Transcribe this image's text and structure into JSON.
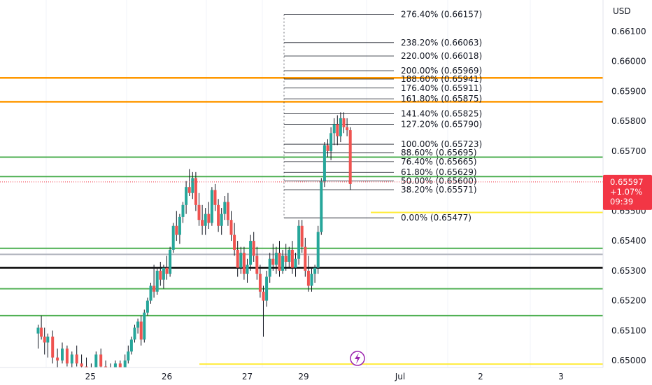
{
  "chart_data": {
    "type": "candlestick",
    "currency": "USD",
    "y_range": [
      0.6497,
      0.6616
    ],
    "y_ticks": [
      "0.66100",
      "0.66000",
      "0.65900",
      "0.65800",
      "0.65700",
      "0.65600",
      "0.65500",
      "0.65400",
      "0.65300",
      "0.65200",
      "0.65100",
      "0.65000"
    ],
    "x_labels": [
      {
        "label": "25",
        "t": 0.55
      },
      {
        "label": "26",
        "t": 1.5
      },
      {
        "label": "27",
        "t": 2.5
      },
      {
        "label": "29",
        "t": 3.2
      },
      {
        "label": "Jul",
        "t": 4.4
      },
      {
        "label": "2",
        "t": 5.4
      },
      {
        "label": "3",
        "t": 6.4
      }
    ],
    "current_price": {
      "value": 0.65597,
      "price_label": "0.65597",
      "change_label": "+1.07%",
      "countdown_label": "09:39",
      "color": "#f23645"
    },
    "fib_levels": [
      {
        "label": "276.40% (0.66157)",
        "price": 0.66157
      },
      {
        "label": "238.20% (0.66063)",
        "price": 0.66063
      },
      {
        "label": "220.00% (0.66018)",
        "price": 0.66018
      },
      {
        "label": "200.00% (0.65969)",
        "price": 0.65969
      },
      {
        "label": "188.60% (0.65941)",
        "price": 0.65941
      },
      {
        "label": "176.40% (0.65911)",
        "price": 0.65911
      },
      {
        "label": "161.80% (0.65875)",
        "price": 0.65875
      },
      {
        "label": "141.40% (0.65825)",
        "price": 0.65825
      },
      {
        "label": "127.20% (0.65790)",
        "price": 0.6579
      },
      {
        "label": "100.00% (0.65723)",
        "price": 0.65723
      },
      {
        "label": "88.60% (0.65695)",
        "price": 0.65695
      },
      {
        "label": "76.40% (0.65665)",
        "price": 0.65665
      },
      {
        "label": "61.80% (0.65629)",
        "price": 0.65629
      },
      {
        "label": "50.00% (0.65600)",
        "price": 0.656
      },
      {
        "label": "38.20% (0.65571)",
        "price": 0.65571
      },
      {
        "label": "0.00% (0.65477)",
        "price": 0.65477
      }
    ],
    "horizontal_levels": [
      {
        "price": 0.65945,
        "color": "#ff9800",
        "style": "solid"
      },
      {
        "price": 0.65865,
        "color": "#ff9800",
        "style": "solid"
      },
      {
        "price": 0.6568,
        "color": "#4caf50",
        "style": "solid"
      },
      {
        "price": 0.65615,
        "color": "#4caf50",
        "style": "solid"
      },
      {
        "price": 0.65375,
        "color": "#4caf50",
        "style": "solid"
      },
      {
        "price": 0.65355,
        "color": "#b2b5be",
        "style": "solid"
      },
      {
        "price": 0.6531,
        "color": "#000000",
        "style": "solid"
      },
      {
        "price": 0.6524,
        "color": "#4caf50",
        "style": "solid"
      },
      {
        "price": 0.6515,
        "color": "#4caf50",
        "style": "solid"
      },
      {
        "price": 0.65495,
        "color": "#ffeb3b",
        "style": "partial"
      },
      {
        "price": 0.64988,
        "color": "#ffeb3b",
        "style": "partial"
      }
    ],
    "candles": [
      [
        -0.1,
        0.6509,
        0.6512,
        0.6504,
        0.6511
      ],
      [
        -0.06,
        0.6511,
        0.6515,
        0.6507,
        0.6508
      ],
      [
        -0.02,
        0.6508,
        0.6511,
        0.6502,
        0.6506
      ],
      [
        0.02,
        0.6506,
        0.6509,
        0.6501,
        0.6508
      ],
      [
        0.08,
        0.6508,
        0.651,
        0.6499,
        0.6501
      ],
      [
        0.14,
        0.6501,
        0.6504,
        0.6497,
        0.65
      ],
      [
        0.2,
        0.65,
        0.6506,
        0.6499,
        0.6504
      ],
      [
        0.26,
        0.6504,
        0.6505,
        0.6498,
        0.6499
      ],
      [
        0.32,
        0.6499,
        0.6503,
        0.6496,
        0.6502
      ],
      [
        0.38,
        0.6502,
        0.6505,
        0.6498,
        0.6499
      ],
      [
        0.44,
        0.6499,
        0.6502,
        0.6495,
        0.6498
      ],
      [
        0.5,
        0.6498,
        0.6501,
        0.6494,
        0.6496
      ],
      [
        0.56,
        0.6496,
        0.6499,
        0.6493,
        0.6497
      ],
      [
        0.62,
        0.6497,
        0.6503,
        0.6496,
        0.6502
      ],
      [
        0.68,
        0.6502,
        0.6504,
        0.6497,
        0.6498
      ],
      [
        0.74,
        0.6498,
        0.65,
        0.6494,
        0.6496
      ],
      [
        0.8,
        0.6496,
        0.6499,
        0.6492,
        0.6497
      ],
      [
        0.86,
        0.6497,
        0.65,
        0.6495,
        0.6499
      ],
      [
        0.92,
        0.6499,
        0.65,
        0.6494,
        0.6495
      ],
      [
        0.98,
        0.6495,
        0.6502,
        0.6495,
        0.65
      ],
      [
        1.02,
        0.65,
        0.6505,
        0.6499,
        0.6503
      ],
      [
        1.06,
        0.6503,
        0.6508,
        0.6502,
        0.6507
      ],
      [
        1.1,
        0.6507,
        0.6512,
        0.6506,
        0.6511
      ],
      [
        1.14,
        0.6511,
        0.6514,
        0.6509,
        0.6513
      ],
      [
        1.18,
        0.6513,
        0.6515,
        0.6505,
        0.6507
      ],
      [
        1.22,
        0.6507,
        0.6517,
        0.6506,
        0.6516
      ],
      [
        1.26,
        0.6516,
        0.6521,
        0.6515,
        0.652
      ],
      [
        1.3,
        0.652,
        0.6526,
        0.6519,
        0.6525
      ],
      [
        1.34,
        0.6525,
        0.6532,
        0.6521,
        0.6523
      ],
      [
        1.38,
        0.6523,
        0.6531,
        0.6522,
        0.653
      ],
      [
        1.42,
        0.653,
        0.6533,
        0.6525,
        0.6527
      ],
      [
        1.46,
        0.6527,
        0.6532,
        0.6524,
        0.6531
      ],
      [
        1.5,
        0.6531,
        0.6535,
        0.6527,
        0.6529
      ],
      [
        1.54,
        0.6529,
        0.6538,
        0.6528,
        0.6537
      ],
      [
        1.58,
        0.6537,
        0.6546,
        0.6536,
        0.6545
      ],
      [
        1.62,
        0.6545,
        0.655,
        0.654,
        0.6542
      ],
      [
        1.66,
        0.6542,
        0.6549,
        0.6539,
        0.6548
      ],
      [
        1.7,
        0.6548,
        0.6553,
        0.6546,
        0.6552
      ],
      [
        1.74,
        0.6552,
        0.656,
        0.6549,
        0.6558
      ],
      [
        1.78,
        0.6558,
        0.6564,
        0.6555,
        0.6556
      ],
      [
        1.82,
        0.6556,
        0.6563,
        0.6554,
        0.6561
      ],
      [
        1.86,
        0.6561,
        0.6563,
        0.655,
        0.6552
      ],
      [
        1.9,
        0.6552,
        0.6556,
        0.6545,
        0.6547
      ],
      [
        1.94,
        0.6547,
        0.6552,
        0.6542,
        0.6545
      ],
      [
        1.98,
        0.6545,
        0.6551,
        0.6542,
        0.6549
      ],
      [
        2.02,
        0.6549,
        0.6553,
        0.6544,
        0.6546
      ],
      [
        2.06,
        0.6546,
        0.6558,
        0.6545,
        0.6557
      ],
      [
        2.1,
        0.6557,
        0.6559,
        0.655,
        0.6552
      ],
      [
        2.14,
        0.6552,
        0.6554,
        0.6543,
        0.6545
      ],
      [
        2.18,
        0.6545,
        0.6551,
        0.6542,
        0.6549
      ],
      [
        2.22,
        0.6549,
        0.6555,
        0.6547,
        0.6553
      ],
      [
        2.26,
        0.6553,
        0.6556,
        0.6545,
        0.6547
      ],
      [
        2.3,
        0.6547,
        0.655,
        0.654,
        0.6542
      ],
      [
        2.34,
        0.6542,
        0.6546,
        0.6535,
        0.6537
      ],
      [
        2.38,
        0.6537,
        0.654,
        0.6528,
        0.6531
      ],
      [
        2.42,
        0.6531,
        0.6538,
        0.6529,
        0.6536
      ],
      [
        2.46,
        0.6536,
        0.6538,
        0.6527,
        0.6529
      ],
      [
        2.5,
        0.6529,
        0.6534,
        0.6526,
        0.6532
      ],
      [
        2.54,
        0.6532,
        0.6542,
        0.653,
        0.654
      ],
      [
        2.58,
        0.654,
        0.6543,
        0.6533,
        0.6535
      ],
      [
        2.62,
        0.6535,
        0.6538,
        0.6527,
        0.6529
      ],
      [
        2.66,
        0.6529,
        0.6532,
        0.6521,
        0.6523
      ],
      [
        2.7,
        0.6523,
        0.6525,
        0.6508,
        0.652
      ],
      [
        2.74,
        0.652,
        0.653,
        0.6518,
        0.6528
      ],
      [
        2.78,
        0.6528,
        0.6536,
        0.6526,
        0.6534
      ],
      [
        2.82,
        0.6534,
        0.6539,
        0.653,
        0.6532
      ],
      [
        2.86,
        0.6532,
        0.6538,
        0.6529,
        0.6536
      ],
      [
        2.9,
        0.6536,
        0.654,
        0.6528,
        0.653
      ],
      [
        2.94,
        0.653,
        0.6537,
        0.6529,
        0.6535
      ],
      [
        2.98,
        0.6535,
        0.6539,
        0.653,
        0.6533
      ],
      [
        3.02,
        0.6533,
        0.6538,
        0.6531,
        0.6537
      ],
      [
        3.06,
        0.6537,
        0.654,
        0.6529,
        0.6531
      ],
      [
        3.1,
        0.6531,
        0.6536,
        0.6528,
        0.6534
      ],
      [
        3.14,
        0.6534,
        0.6547,
        0.6532,
        0.6545
      ],
      [
        3.18,
        0.6545,
        0.6547,
        0.6536,
        0.6538
      ],
      [
        3.22,
        0.6538,
        0.6541,
        0.6528,
        0.653
      ],
      [
        3.26,
        0.653,
        0.6535,
        0.6523,
        0.6525
      ],
      [
        3.3,
        0.6525,
        0.6531,
        0.6523,
        0.6529
      ],
      [
        3.34,
        0.6529,
        0.6532,
        0.6526,
        0.6531
      ],
      [
        3.38,
        0.6531,
        0.6545,
        0.6529,
        0.6543
      ],
      [
        3.42,
        0.6543,
        0.6561,
        0.6542,
        0.656
      ],
      [
        3.46,
        0.656,
        0.6573,
        0.6558,
        0.6572
      ],
      [
        3.5,
        0.6572,
        0.6574,
        0.6568,
        0.657
      ],
      [
        3.54,
        0.657,
        0.6578,
        0.6567,
        0.6576
      ],
      [
        3.58,
        0.6576,
        0.6581,
        0.6572,
        0.6579
      ],
      [
        3.62,
        0.6579,
        0.6582,
        0.6572,
        0.6575
      ],
      [
        3.66,
        0.6575,
        0.6583,
        0.6573,
        0.6581
      ],
      [
        3.7,
        0.6581,
        0.6583,
        0.6576,
        0.6578
      ],
      [
        3.74,
        0.6578,
        0.6581,
        0.6575,
        0.6577
      ],
      [
        3.78,
        0.6577,
        0.6578,
        0.6557,
        0.6559
      ]
    ]
  }
}
